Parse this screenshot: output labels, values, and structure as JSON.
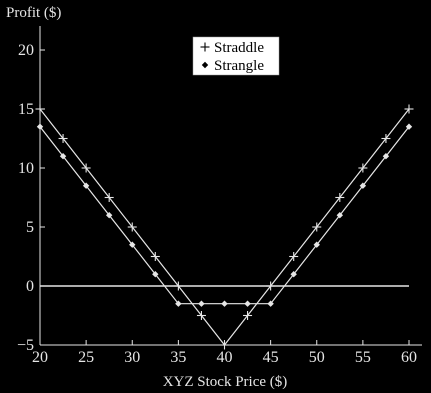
{
  "chart_data": {
    "type": "line",
    "title": "",
    "xlabel": "XYZ Stock Price ($)",
    "ylabel": "Profit ($)",
    "xlim": [
      20,
      60
    ],
    "ylim": [
      -5,
      22
    ],
    "xticks": [
      20,
      25,
      30,
      35,
      40,
      45,
      50,
      55,
      60
    ],
    "yticks": [
      -5,
      0,
      5,
      10,
      15,
      20
    ],
    "x_tick_labels": [
      "20",
      "25",
      "30",
      "35",
      "40",
      "45",
      "50",
      "55",
      "60"
    ],
    "y_tick_labels": [
      "−5",
      "0",
      "5",
      "10",
      "15",
      "20"
    ],
    "zero_line": true,
    "grid": false,
    "legend_position": "top-center",
    "colors": {
      "background": "#000000",
      "foreground": "#e6e6e6",
      "legend_bg": "#ffffff"
    },
    "series": [
      {
        "name": "Straddle",
        "marker": "plus",
        "x": [
          20,
          22.5,
          25,
          27.5,
          30,
          32.5,
          35,
          37.5,
          40,
          42.5,
          45,
          47.5,
          50,
          52.5,
          55,
          57.5,
          60
        ],
        "y": [
          15,
          12.5,
          10,
          7.5,
          5,
          2.5,
          0,
          -2.5,
          -5,
          -2.5,
          0,
          2.5,
          5,
          7.5,
          10,
          12.5,
          15
        ]
      },
      {
        "name": "Strangle",
        "marker": "diamond",
        "x": [
          20,
          22.5,
          25,
          27.5,
          30,
          32.5,
          35,
          37.5,
          40,
          42.5,
          45,
          47.5,
          50,
          52.5,
          55,
          57.5,
          60
        ],
        "y": [
          13.5,
          11,
          8.5,
          6,
          3.5,
          1,
          -1.5,
          -1.5,
          -1.5,
          -1.5,
          -1.5,
          1,
          3.5,
          6,
          8.5,
          11,
          13.5
        ]
      }
    ]
  }
}
